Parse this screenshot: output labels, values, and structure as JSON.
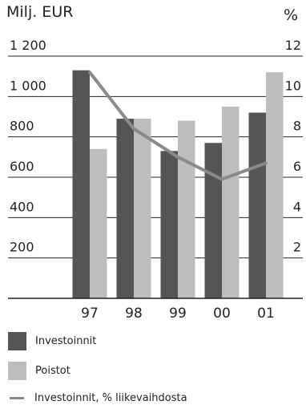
{
  "chart_data": {
    "type": "bar",
    "y_left_label": "Milj. EUR",
    "y_right_label": "%",
    "y_left_ticks": [
      "1 200",
      "1 000",
      "800",
      "600",
      "400",
      "200"
    ],
    "y_right_ticks": [
      "12",
      "10",
      "8",
      "6",
      "4",
      "2"
    ],
    "ylim_left": [
      0,
      1200
    ],
    "ylim_right": [
      0,
      12
    ],
    "categories": [
      "97",
      "98",
      "99",
      "00",
      "01"
    ],
    "series": [
      {
        "name": "Investoinnit",
        "kind": "bar",
        "axis": "left",
        "color": "#555555",
        "values": [
          1130,
          890,
          730,
          770,
          920
        ]
      },
      {
        "name": "Poistot",
        "kind": "bar",
        "axis": "left",
        "color": "#bdbdbd",
        "values": [
          740,
          890,
          880,
          950,
          1120
        ]
      },
      {
        "name": "Investoinnit, % liikevaihdosta",
        "kind": "line",
        "axis": "right",
        "color": "#8a8a8a",
        "values": [
          11.2,
          8.4,
          7.0,
          5.9,
          6.7
        ]
      }
    ],
    "grid": true
  }
}
